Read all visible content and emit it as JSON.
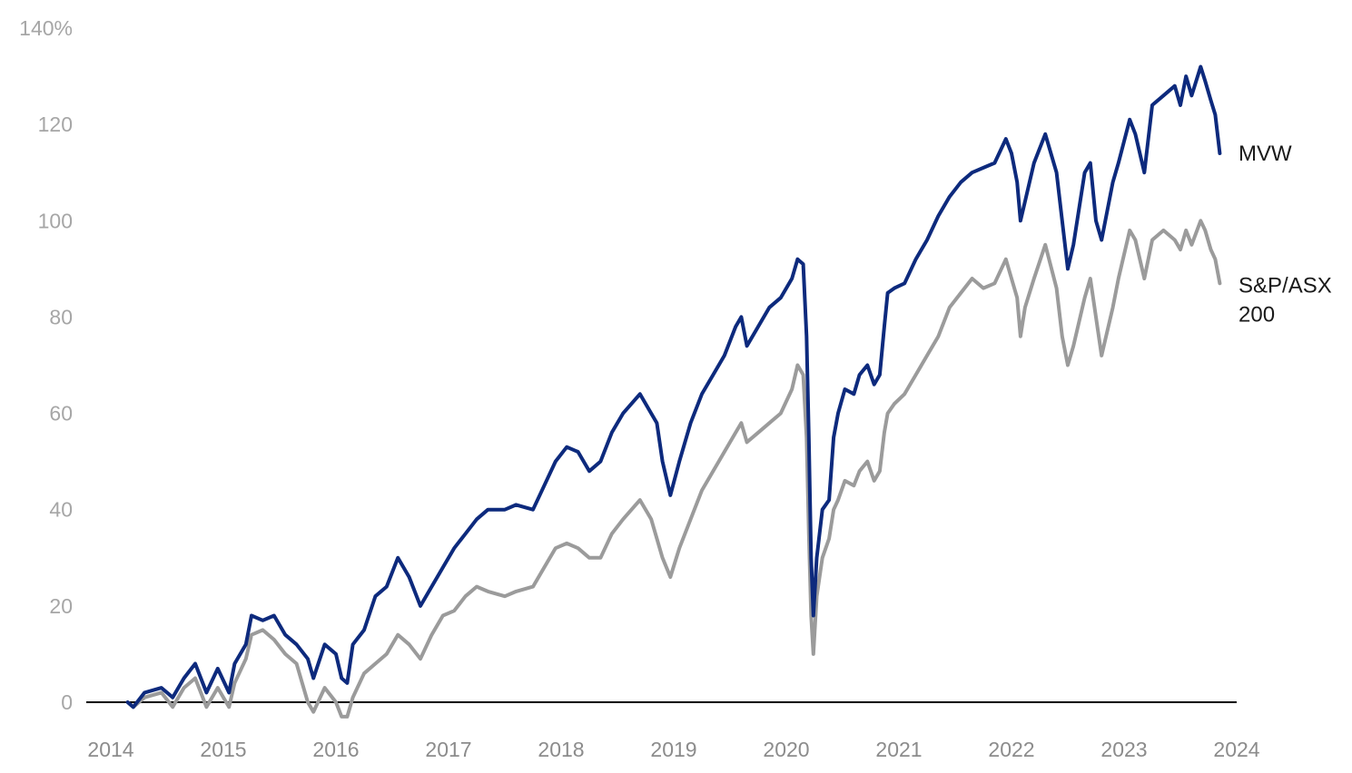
{
  "chart_data": {
    "type": "line",
    "title": "",
    "xlabel": "",
    "ylabel": "",
    "xlim": [
      2014,
      2024
    ],
    "ylim": [
      0,
      140
    ],
    "x_ticks": [
      "2014",
      "2015",
      "2016",
      "2017",
      "2018",
      "2019",
      "2020",
      "2021",
      "2022",
      "2023",
      "2024"
    ],
    "y_ticks": [
      "0",
      "20",
      "40",
      "60",
      "80",
      "100",
      "120",
      "140%"
    ],
    "grid": false,
    "legend": "direct labels at right end of lines",
    "series": [
      {
        "name": "MVW",
        "label_lines": [
          "MVW"
        ],
        "color": "#0d2a7d",
        "points": [
          [
            2014.15,
            0
          ],
          [
            2014.2,
            -1
          ],
          [
            2014.3,
            2
          ],
          [
            2014.45,
            3
          ],
          [
            2014.55,
            1
          ],
          [
            2014.65,
            5
          ],
          [
            2014.75,
            8
          ],
          [
            2014.85,
            2
          ],
          [
            2014.95,
            7
          ],
          [
            2015.05,
            2
          ],
          [
            2015.1,
            8
          ],
          [
            2015.2,
            12
          ],
          [
            2015.25,
            18
          ],
          [
            2015.35,
            17
          ],
          [
            2015.45,
            18
          ],
          [
            2015.55,
            14
          ],
          [
            2015.65,
            12
          ],
          [
            2015.75,
            9
          ],
          [
            2015.8,
            5
          ],
          [
            2015.9,
            12
          ],
          [
            2016.0,
            10
          ],
          [
            2016.05,
            5
          ],
          [
            2016.1,
            4
          ],
          [
            2016.15,
            12
          ],
          [
            2016.25,
            15
          ],
          [
            2016.35,
            22
          ],
          [
            2016.45,
            24
          ],
          [
            2016.55,
            30
          ],
          [
            2016.65,
            26
          ],
          [
            2016.75,
            20
          ],
          [
            2016.85,
            24
          ],
          [
            2016.95,
            28
          ],
          [
            2017.05,
            32
          ],
          [
            2017.15,
            35
          ],
          [
            2017.25,
            38
          ],
          [
            2017.35,
            40
          ],
          [
            2017.5,
            40
          ],
          [
            2017.6,
            41
          ],
          [
            2017.75,
            40
          ],
          [
            2017.85,
            45
          ],
          [
            2017.95,
            50
          ],
          [
            2018.05,
            53
          ],
          [
            2018.15,
            52
          ],
          [
            2018.25,
            48
          ],
          [
            2018.35,
            50
          ],
          [
            2018.45,
            56
          ],
          [
            2018.55,
            60
          ],
          [
            2018.7,
            64
          ],
          [
            2018.8,
            60
          ],
          [
            2018.85,
            58
          ],
          [
            2018.9,
            50
          ],
          [
            2018.97,
            43
          ],
          [
            2019.05,
            50
          ],
          [
            2019.15,
            58
          ],
          [
            2019.25,
            64
          ],
          [
            2019.35,
            68
          ],
          [
            2019.45,
            72
          ],
          [
            2019.55,
            78
          ],
          [
            2019.6,
            80
          ],
          [
            2019.65,
            74
          ],
          [
            2019.75,
            78
          ],
          [
            2019.85,
            82
          ],
          [
            2019.95,
            84
          ],
          [
            2020.05,
            88
          ],
          [
            2020.1,
            92
          ],
          [
            2020.15,
            91
          ],
          [
            2020.18,
            76
          ],
          [
            2020.2,
            55
          ],
          [
            2020.22,
            30
          ],
          [
            2020.24,
            18
          ],
          [
            2020.27,
            30
          ],
          [
            2020.32,
            40
          ],
          [
            2020.38,
            42
          ],
          [
            2020.42,
            55
          ],
          [
            2020.46,
            60
          ],
          [
            2020.52,
            65
          ],
          [
            2020.6,
            64
          ],
          [
            2020.65,
            68
          ],
          [
            2020.72,
            70
          ],
          [
            2020.78,
            66
          ],
          [
            2020.83,
            68
          ],
          [
            2020.87,
            78
          ],
          [
            2020.9,
            85
          ],
          [
            2020.96,
            86
          ],
          [
            2021.05,
            87
          ],
          [
            2021.15,
            92
          ],
          [
            2021.25,
            96
          ],
          [
            2021.35,
            101
          ],
          [
            2021.45,
            105
          ],
          [
            2021.55,
            108
          ],
          [
            2021.65,
            110
          ],
          [
            2021.75,
            111
          ],
          [
            2021.85,
            112
          ],
          [
            2021.95,
            117
          ],
          [
            2022.0,
            114
          ],
          [
            2022.05,
            108
          ],
          [
            2022.08,
            100
          ],
          [
            2022.12,
            104
          ],
          [
            2022.2,
            112
          ],
          [
            2022.3,
            118
          ],
          [
            2022.4,
            110
          ],
          [
            2022.45,
            100
          ],
          [
            2022.5,
            90
          ],
          [
            2022.55,
            95
          ],
          [
            2022.65,
            110
          ],
          [
            2022.7,
            112
          ],
          [
            2022.75,
            100
          ],
          [
            2022.8,
            96
          ],
          [
            2022.9,
            108
          ],
          [
            2022.95,
            112
          ],
          [
            2023.05,
            121
          ],
          [
            2023.1,
            118
          ],
          [
            2023.18,
            110
          ],
          [
            2023.25,
            124
          ],
          [
            2023.35,
            126
          ],
          [
            2023.45,
            128
          ],
          [
            2023.5,
            124
          ],
          [
            2023.55,
            130
          ],
          [
            2023.6,
            126
          ],
          [
            2023.68,
            132
          ],
          [
            2023.72,
            129
          ],
          [
            2023.77,
            125
          ],
          [
            2023.81,
            122
          ],
          [
            2023.85,
            114
          ]
        ]
      },
      {
        "name": "S&P/ASX 200",
        "label_lines": [
          "S&P/ASX",
          "200"
        ],
        "color": "#9b9b9b",
        "points": [
          [
            2014.15,
            0
          ],
          [
            2014.2,
            -1
          ],
          [
            2014.3,
            1
          ],
          [
            2014.45,
            2
          ],
          [
            2014.55,
            -1
          ],
          [
            2014.65,
            3
          ],
          [
            2014.75,
            5
          ],
          [
            2014.85,
            -1
          ],
          [
            2014.95,
            3
          ],
          [
            2015.05,
            -1
          ],
          [
            2015.1,
            4
          ],
          [
            2015.2,
            9
          ],
          [
            2015.25,
            14
          ],
          [
            2015.35,
            15
          ],
          [
            2015.45,
            13
          ],
          [
            2015.55,
            10
          ],
          [
            2015.65,
            8
          ],
          [
            2015.7,
            4
          ],
          [
            2015.75,
            0
          ],
          [
            2015.8,
            -2
          ],
          [
            2015.9,
            3
          ],
          [
            2016.0,
            0
          ],
          [
            2016.05,
            -3
          ],
          [
            2016.1,
            -3
          ],
          [
            2016.15,
            1
          ],
          [
            2016.25,
            6
          ],
          [
            2016.35,
            8
          ],
          [
            2016.45,
            10
          ],
          [
            2016.55,
            14
          ],
          [
            2016.65,
            12
          ],
          [
            2016.75,
            9
          ],
          [
            2016.85,
            14
          ],
          [
            2016.95,
            18
          ],
          [
            2017.05,
            19
          ],
          [
            2017.15,
            22
          ],
          [
            2017.25,
            24
          ],
          [
            2017.35,
            23
          ],
          [
            2017.5,
            22
          ],
          [
            2017.6,
            23
          ],
          [
            2017.75,
            24
          ],
          [
            2017.85,
            28
          ],
          [
            2017.95,
            32
          ],
          [
            2018.05,
            33
          ],
          [
            2018.15,
            32
          ],
          [
            2018.25,
            30
          ],
          [
            2018.35,
            30
          ],
          [
            2018.45,
            35
          ],
          [
            2018.55,
            38
          ],
          [
            2018.7,
            42
          ],
          [
            2018.8,
            38
          ],
          [
            2018.85,
            34
          ],
          [
            2018.9,
            30
          ],
          [
            2018.97,
            26
          ],
          [
            2019.05,
            32
          ],
          [
            2019.15,
            38
          ],
          [
            2019.25,
            44
          ],
          [
            2019.35,
            48
          ],
          [
            2019.45,
            52
          ],
          [
            2019.55,
            56
          ],
          [
            2019.6,
            58
          ],
          [
            2019.65,
            54
          ],
          [
            2019.75,
            56
          ],
          [
            2019.85,
            58
          ],
          [
            2019.95,
            60
          ],
          [
            2020.05,
            65
          ],
          [
            2020.1,
            70
          ],
          [
            2020.15,
            68
          ],
          [
            2020.18,
            55
          ],
          [
            2020.2,
            35
          ],
          [
            2020.22,
            18
          ],
          [
            2020.24,
            10
          ],
          [
            2020.27,
            22
          ],
          [
            2020.32,
            30
          ],
          [
            2020.38,
            34
          ],
          [
            2020.42,
            40
          ],
          [
            2020.46,
            42
          ],
          [
            2020.52,
            46
          ],
          [
            2020.6,
            45
          ],
          [
            2020.65,
            48
          ],
          [
            2020.72,
            50
          ],
          [
            2020.78,
            46
          ],
          [
            2020.83,
            48
          ],
          [
            2020.87,
            56
          ],
          [
            2020.9,
            60
          ],
          [
            2020.96,
            62
          ],
          [
            2021.05,
            64
          ],
          [
            2021.15,
            68
          ],
          [
            2021.25,
            72
          ],
          [
            2021.35,
            76
          ],
          [
            2021.45,
            82
          ],
          [
            2021.55,
            85
          ],
          [
            2021.65,
            88
          ],
          [
            2021.75,
            86
          ],
          [
            2021.85,
            87
          ],
          [
            2021.95,
            92
          ],
          [
            2022.0,
            88
          ],
          [
            2022.05,
            84
          ],
          [
            2022.08,
            76
          ],
          [
            2022.12,
            82
          ],
          [
            2022.2,
            88
          ],
          [
            2022.3,
            95
          ],
          [
            2022.4,
            86
          ],
          [
            2022.45,
            76
          ],
          [
            2022.5,
            70
          ],
          [
            2022.55,
            74
          ],
          [
            2022.65,
            84
          ],
          [
            2022.7,
            88
          ],
          [
            2022.75,
            80
          ],
          [
            2022.8,
            72
          ],
          [
            2022.9,
            82
          ],
          [
            2022.95,
            88
          ],
          [
            2023.05,
            98
          ],
          [
            2023.1,
            96
          ],
          [
            2023.18,
            88
          ],
          [
            2023.25,
            96
          ],
          [
            2023.35,
            98
          ],
          [
            2023.45,
            96
          ],
          [
            2023.5,
            94
          ],
          [
            2023.55,
            98
          ],
          [
            2023.6,
            95
          ],
          [
            2023.68,
            100
          ],
          [
            2023.72,
            98
          ],
          [
            2023.77,
            94
          ],
          [
            2023.81,
            92
          ],
          [
            2023.85,
            87
          ]
        ]
      }
    ]
  }
}
